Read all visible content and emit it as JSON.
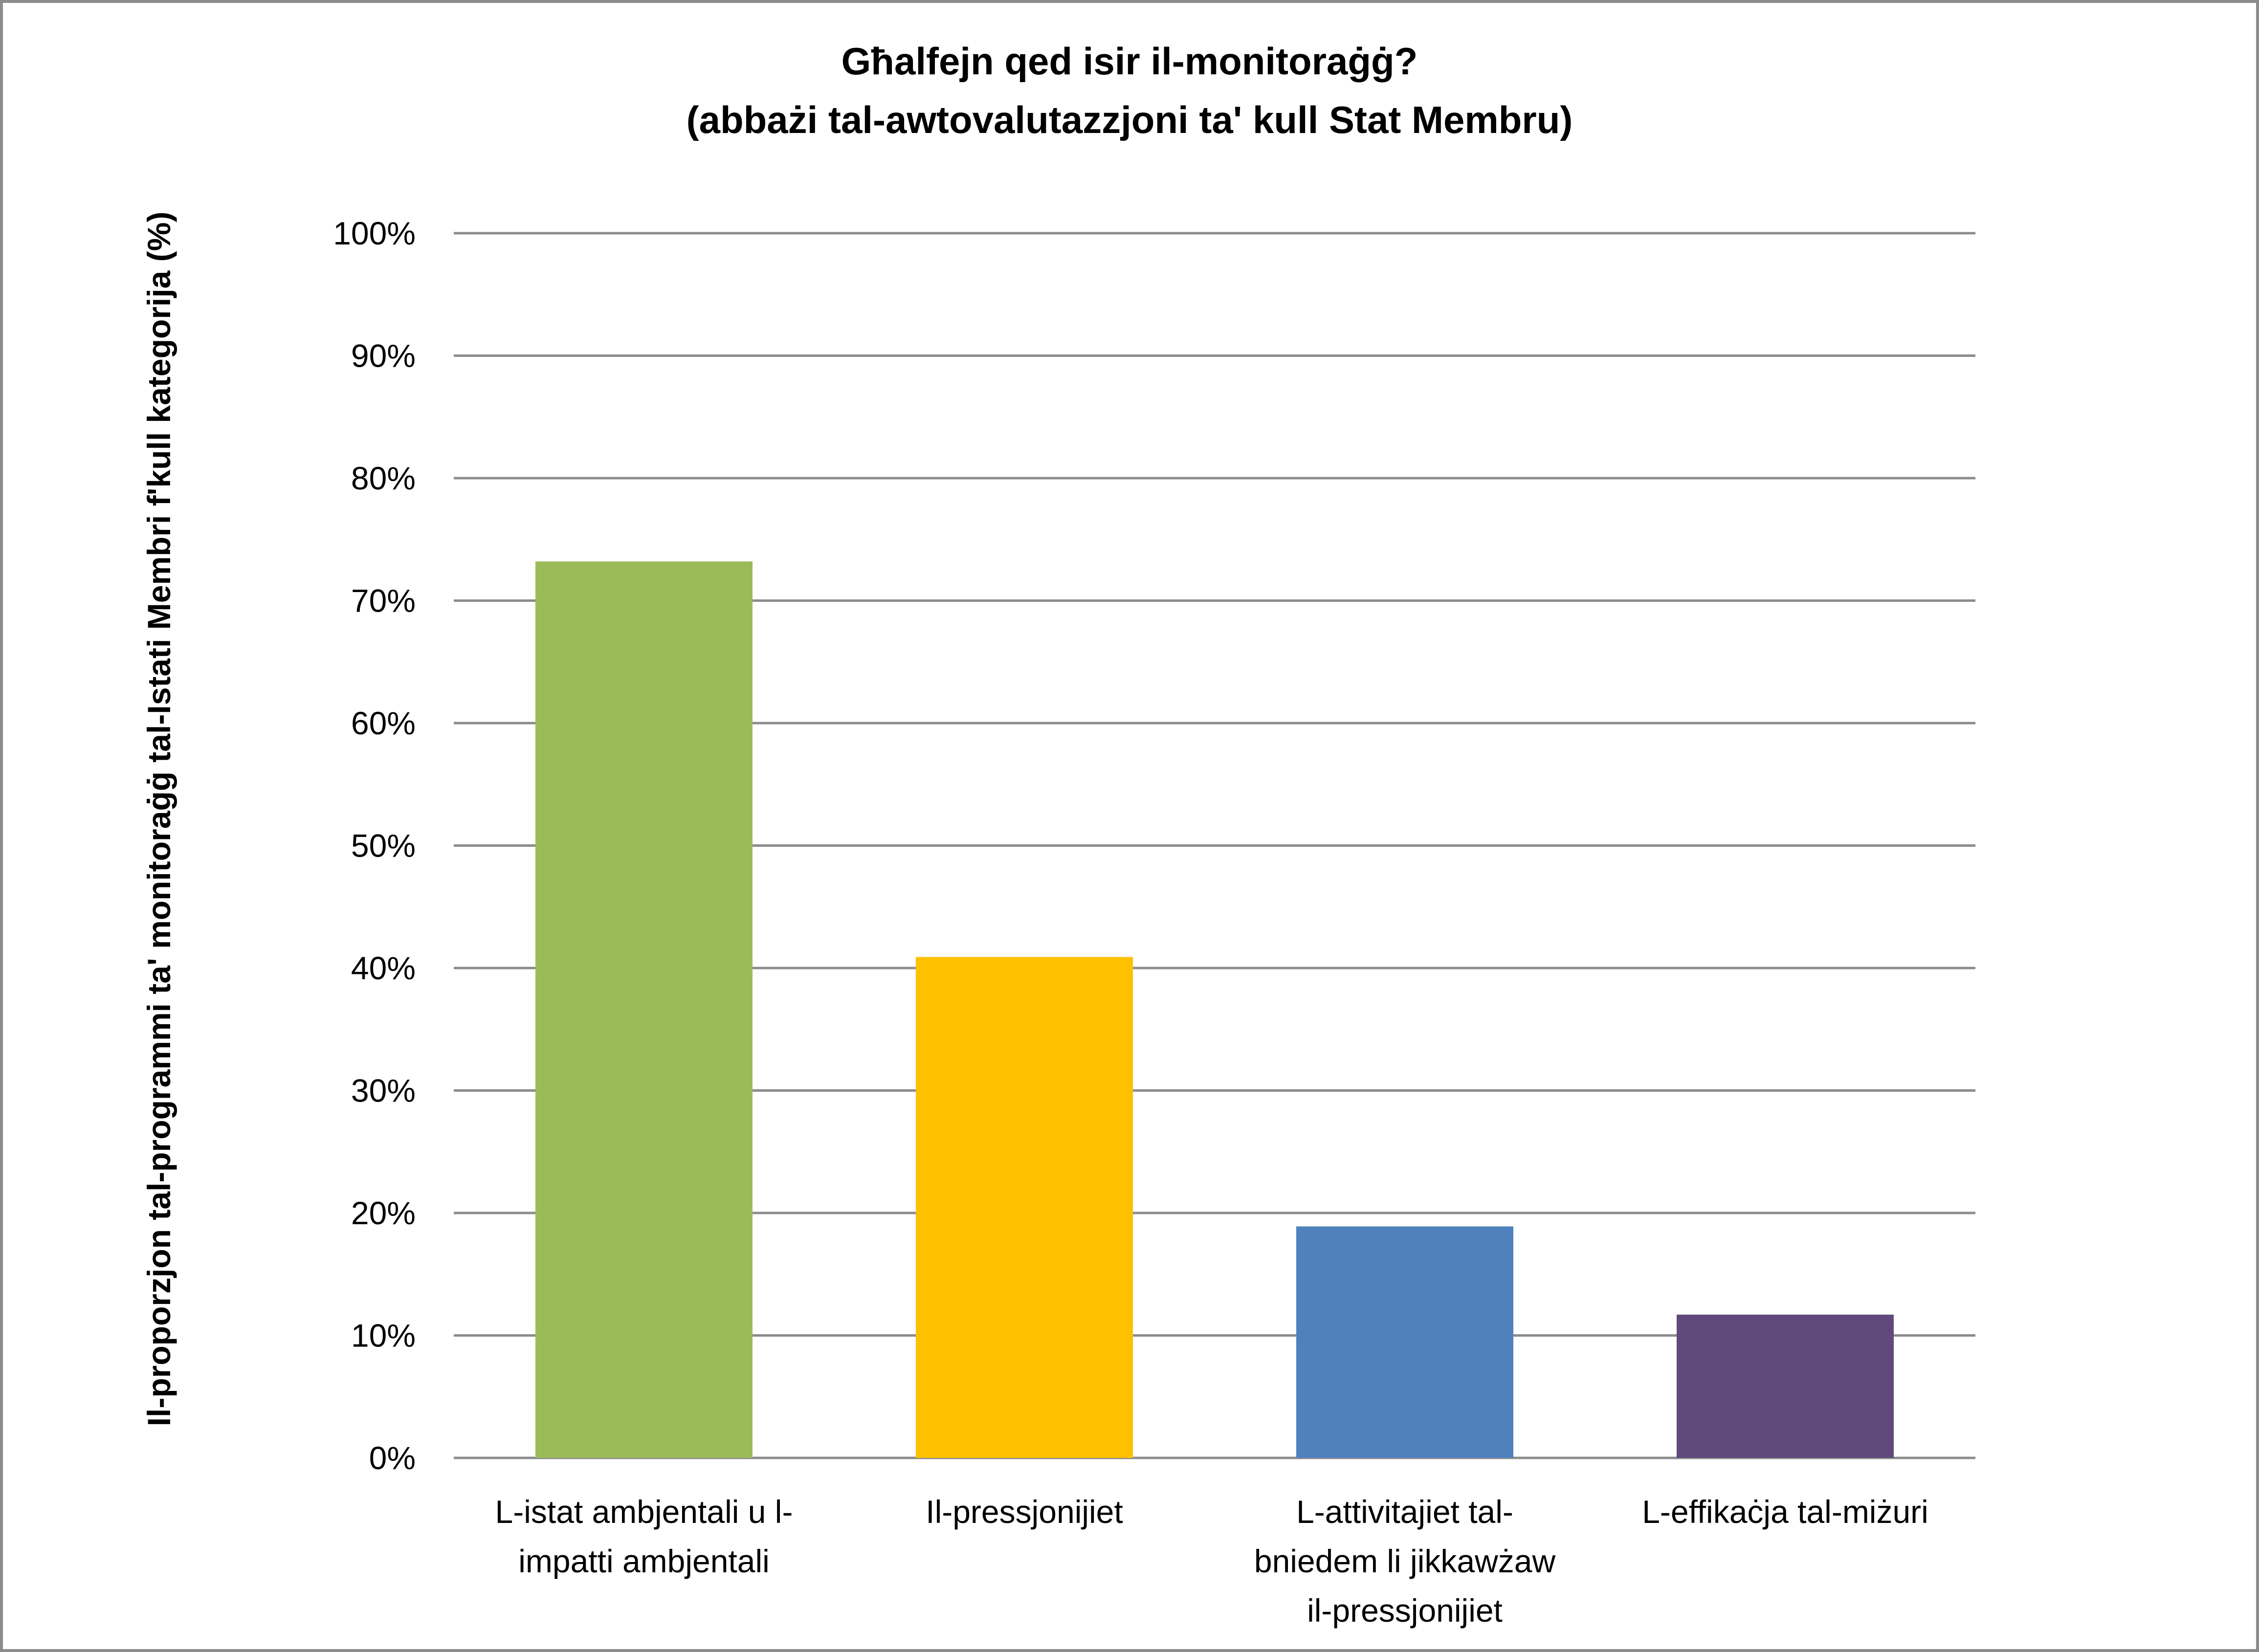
{
  "chart_data": {
    "type": "bar",
    "title": "Għalfejn qed isir il-monitoraġġ?",
    "subtitle": "(abbażi tal-awtovalutazzjoni ta' kull Stat Membru)",
    "ylabel": "Il-proporzjon tal-programmi ta' monitoraġġ tal-Istati Membri f'kull kategorija  (%)",
    "xlabel": "",
    "ylim": [
      0,
      100
    ],
    "y_ticks": [
      "0%",
      "10%",
      "20%",
      "30%",
      "40%",
      "50%",
      "60%",
      "70%",
      "80%",
      "90%",
      "100%"
    ],
    "grid": true,
    "categories": [
      [
        "L-istat ambjentali u l-",
        "impatti ambjentali"
      ],
      [
        "Il-pressjonijiet"
      ],
      [
        "L-attivitajiet tal-",
        "bniedem li jikkawżaw",
        "il-pressjonijiet"
      ],
      [
        "L-effikaċja tal-miżuri"
      ]
    ],
    "values": [
      73.2,
      40.9,
      18.9,
      11.7
    ],
    "colors": [
      "#9bbb59",
      "#ffc000",
      "#4f81bd",
      "#604a7b"
    ],
    "gridline_color": "#8c8c8c"
  }
}
